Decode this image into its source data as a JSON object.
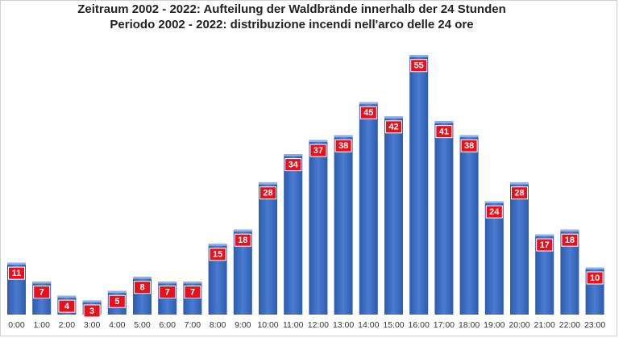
{
  "chart_data": {
    "type": "bar",
    "title": "Zeitraum 2002 - 2022: Aufteilung der Waldbrände innerhalb der 24 Stunden",
    "subtitle": "Periodo 2002 - 2022: distribuzione incendi nell'arco delle 24 ore",
    "categories": [
      "0:00",
      "1:00",
      "2:00",
      "3:00",
      "4:00",
      "5:00",
      "6:00",
      "7:00",
      "8:00",
      "9:00",
      "10:00",
      "11:00",
      "12:00",
      "13:00",
      "14:00",
      "15:00",
      "16:00",
      "17:00",
      "18:00",
      "19:00",
      "20:00",
      "21:00",
      "22:00",
      "23:00"
    ],
    "values": [
      11,
      7,
      4,
      3,
      5,
      8,
      7,
      7,
      15,
      18,
      28,
      34,
      37,
      38,
      45,
      42,
      55,
      41,
      38,
      24,
      28,
      17,
      18,
      10
    ],
    "color": "#3f6fc4",
    "label_color": "#e8101a"
  }
}
